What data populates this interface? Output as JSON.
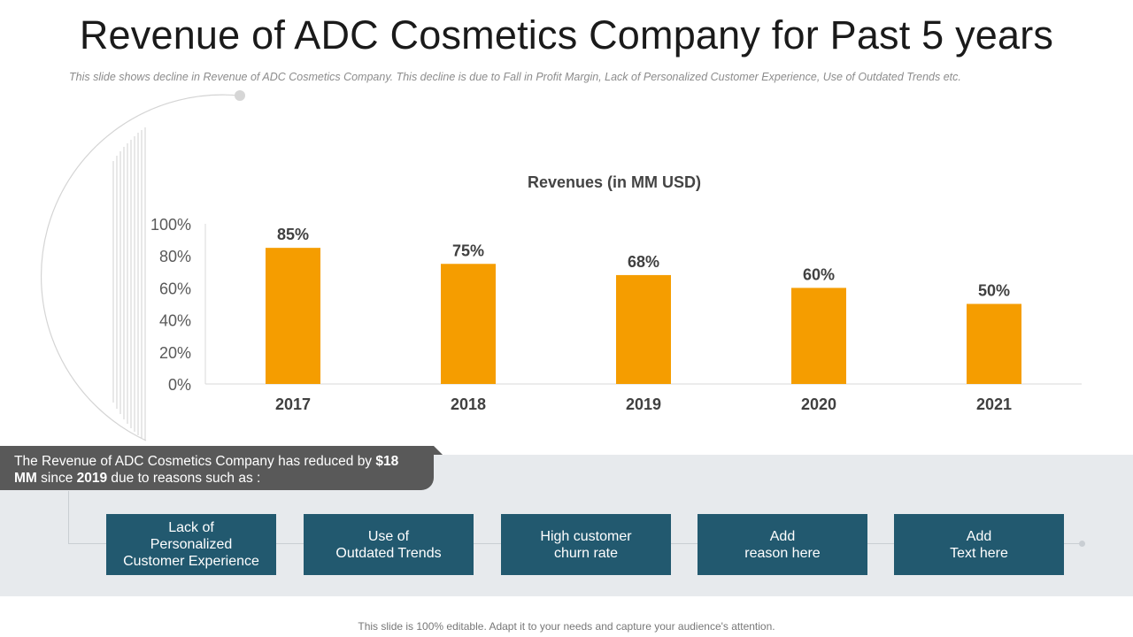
{
  "title": "Revenue of ADC Cosmetics Company for Past 5 years",
  "subtitle": "This slide shows decline in Revenue  of ADC Cosmetics Company. This decline is due to Fall in Profit Margin, Lack of Personalized Customer Experience,  Use of Outdated Trends etc.",
  "chart_data": {
    "type": "bar",
    "title": "Revenues (in MM USD)",
    "categories": [
      "2017",
      "2018",
      "2019",
      "2020",
      "2021"
    ],
    "values": [
      85,
      75,
      68,
      60,
      50
    ],
    "data_labels": [
      "85%",
      "75%",
      "68%",
      "60%",
      "50%"
    ],
    "ylim": [
      0,
      100
    ],
    "yticks": [
      "0%",
      "20%",
      "40%",
      "60%",
      "80%",
      "100%"
    ],
    "ytick_values": [
      0,
      20,
      40,
      60,
      80,
      100
    ],
    "xlabel": "",
    "ylabel": "",
    "grid": false,
    "bar_color": "#f59d00"
  },
  "callout": {
    "text_prefix": "The Revenue  of ADC Cosmetics Company has reduced by ",
    "amount": "$18 MM",
    "text_mid": " since ",
    "year": "2019",
    "text_suffix": " due to reasons such as :"
  },
  "reasons": [
    "Lack of\nPersonalized\nCustomer Experience",
    "Use of\nOutdated Trends",
    "High customer\nchurn rate",
    "Add\nreason here",
    "Add\nText here"
  ],
  "colors": {
    "accent": "#f59d00",
    "reason_box": "#22596f",
    "callout": "#595959",
    "band": "#e7eaed"
  },
  "footer": "This slide is 100% editable. Adapt it to your needs and capture your audience's attention."
}
